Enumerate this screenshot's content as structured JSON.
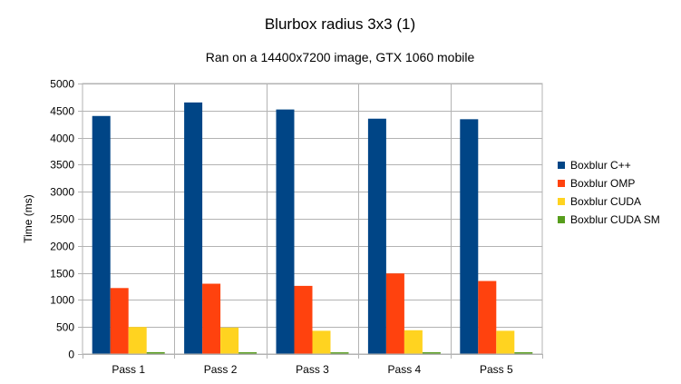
{
  "chart_data": {
    "type": "bar",
    "title": "Blurbox radius 3x3 (1)",
    "subtitle": "Ran on a 14400x7200 image, GTX 1060 mobile",
    "xlabel": "",
    "ylabel": "Time (ms)",
    "ylim": [
      0,
      5000
    ],
    "yticks": [
      0,
      500,
      1000,
      1500,
      2000,
      2500,
      3000,
      3500,
      4000,
      4500,
      5000
    ],
    "grid": true,
    "legend_position": "right",
    "categories": [
      "Pass 1",
      "Pass 2",
      "Pass 3",
      "Pass 4",
      "Pass 5"
    ],
    "series": [
      {
        "name": "Boxblur C++",
        "color": "#004586",
        "values": [
          4400,
          4650,
          4520,
          4350,
          4340
        ]
      },
      {
        "name": "Boxblur OMP",
        "color": "#ff420e",
        "values": [
          1220,
          1300,
          1260,
          1490,
          1350
        ]
      },
      {
        "name": "Boxblur CUDA",
        "color": "#ffd320",
        "values": [
          500,
          490,
          430,
          440,
          430
        ]
      },
      {
        "name": "Boxblur CUDA SM",
        "color": "#579d1c",
        "values": [
          35,
          33,
          32,
          33,
          33
        ]
      }
    ]
  }
}
